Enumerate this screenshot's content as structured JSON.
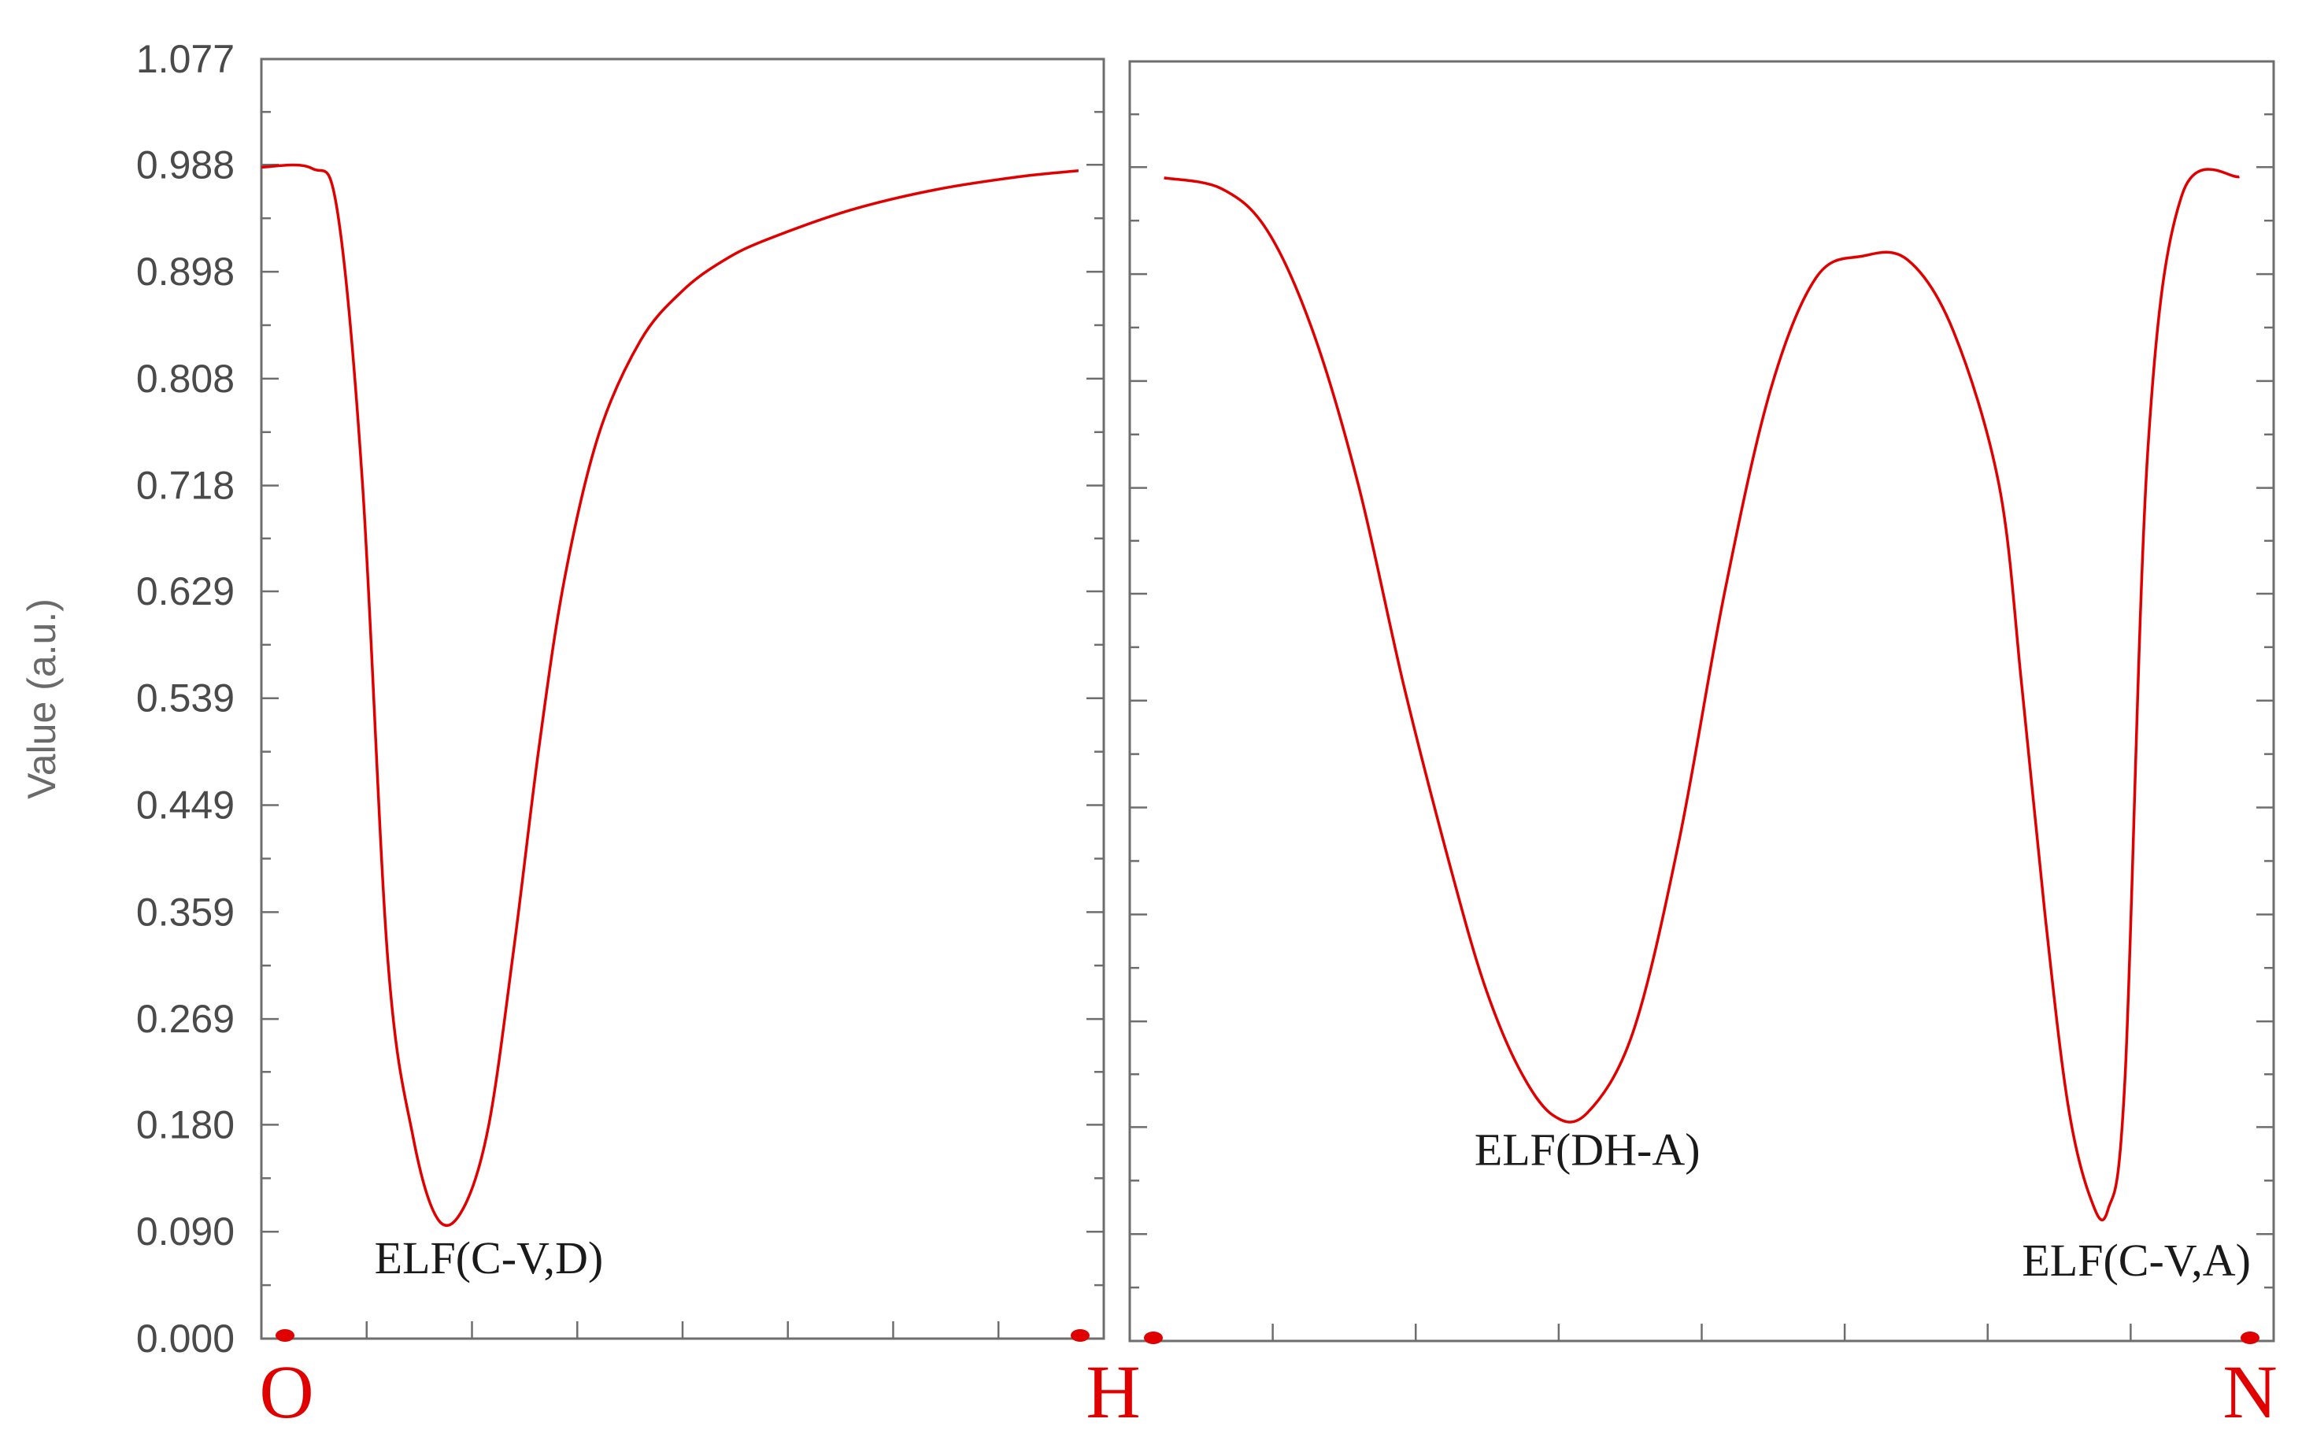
{
  "chart_data": [
    {
      "type": "line",
      "panel": "left",
      "ylabel": "Value (a.u.)",
      "ylim": [
        0.0,
        1.077
      ],
      "yticks": [
        "0.000",
        "0.090",
        "0.180",
        "0.269",
        "0.359",
        "0.449",
        "0.539",
        "0.629",
        "0.718",
        "0.808",
        "0.898",
        "0.988",
        "1.077"
      ],
      "ytick_values": [
        0.0,
        0.09,
        0.18,
        0.269,
        0.359,
        0.449,
        0.539,
        0.629,
        0.718,
        0.808,
        0.898,
        0.988,
        1.077
      ],
      "xlim": [
        0,
        1
      ],
      "x_end_labels": [
        "O",
        "H"
      ],
      "annotations": [
        {
          "text": "ELF(C-V,D)",
          "x": 0.27,
          "y": 0.055
        }
      ],
      "series": [
        {
          "x": [
            0.0,
            0.06,
            0.09,
            0.12,
            0.15,
            0.18,
            0.21,
            0.24,
            0.27,
            0.3,
            0.33,
            0.36,
            0.4,
            0.45,
            0.5,
            0.55,
            0.6,
            0.7,
            0.8,
            0.9,
            0.97
          ],
          "y": [
            0.986,
            0.985,
            0.95,
            0.72,
            0.32,
            0.17,
            0.1,
            0.11,
            0.18,
            0.33,
            0.5,
            0.64,
            0.76,
            0.84,
            0.882,
            0.908,
            0.925,
            0.95,
            0.967,
            0.978,
            0.983
          ]
        }
      ]
    },
    {
      "type": "line",
      "panel": "right",
      "ylim": [
        0.0,
        1.077
      ],
      "xlim": [
        0,
        1
      ],
      "x_end_labels": [
        "",
        "N"
      ],
      "annotations": [
        {
          "text": "ELF(DH-A)",
          "x": 0.4,
          "y": 0.148
        },
        {
          "text": "ELF(C-V,A)",
          "x": 0.88,
          "y": 0.055
        }
      ],
      "series": [
        {
          "x": [
            0.03,
            0.08,
            0.12,
            0.16,
            0.2,
            0.24,
            0.28,
            0.31,
            0.34,
            0.37,
            0.4,
            0.44,
            0.48,
            0.52,
            0.56,
            0.6,
            0.64,
            0.68,
            0.72,
            0.76,
            0.78,
            0.8,
            0.82,
            0.84,
            0.855,
            0.87,
            0.89,
            0.92,
            0.97
          ],
          "y": [
            0.979,
            0.97,
            0.935,
            0.85,
            0.72,
            0.55,
            0.4,
            0.3,
            0.23,
            0.19,
            0.192,
            0.26,
            0.42,
            0.63,
            0.8,
            0.895,
            0.913,
            0.91,
            0.85,
            0.72,
            0.55,
            0.36,
            0.2,
            0.12,
            0.11,
            0.22,
            0.75,
            0.965,
            0.98
          ]
        }
      ]
    }
  ]
}
